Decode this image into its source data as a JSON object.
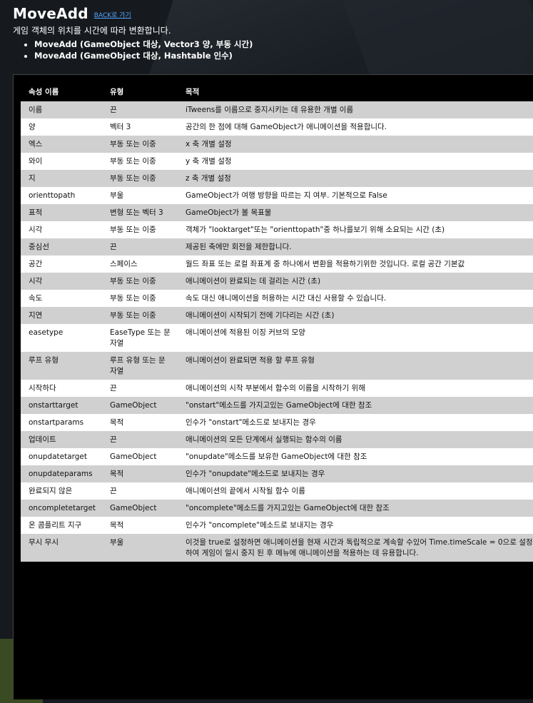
{
  "header": {
    "title": "MoveAdd",
    "back_link": "BACK로 가기",
    "description": "게임 객체의 위치를 시간에 따라 변환합니다.",
    "signatures": [
      "MoveAdd (GameObject 대상, Vector3 양, 부동 시간)",
      "MoveAdd (GameObject 대상, Hashtable 인수)"
    ]
  },
  "table": {
    "headers": [
      "속성 이름",
      "유형",
      "목적"
    ],
    "rows": [
      [
        "이름",
        "끈",
        "iTweens를 이름으로 중지시키는 데 유용한 개별 이름"
      ],
      [
        "양",
        "벡터 3",
        "공간의 한 점에 대해 GameObject가 애니메이션을 적용합니다."
      ],
      [
        "엑스",
        "부동 또는 이중",
        "x 축 개별 설정"
      ],
      [
        "와이",
        "부동 또는 이중",
        "y 축 개별 설정"
      ],
      [
        "지",
        "부동 또는 이중",
        "z 축 개별 설정"
      ],
      [
        "orienttopath",
        "부울",
        "GameObject가 여행 방향을 따르는 지 여부. 기본적으로 False"
      ],
      [
        "표적",
        "변형 또는 벡터 3",
        "GameObject가 볼 목표물"
      ],
      [
        "시각",
        "부동 또는 이중",
        "객체가 \"looktarget\"또는 \"orienttopath\"중 하나를보기 위해 소요되는 시간 (초)"
      ],
      [
        "중심선",
        "끈",
        "제공된 축에만 회전을 제한합니다."
      ],
      [
        "공간",
        "스페이스",
        "월드 좌표 또는 로컬 좌표계 중 하나에서 변환을 적용하기위한 것입니다. 로컬 공간 기본값"
      ],
      [
        "시각",
        "부동 또는 이중",
        "애니메이션이 완료되는 데 걸리는 시간 (초)"
      ],
      [
        "속도",
        "부동 또는 이중",
        "속도 대신 애니메이션을 허용하는 시간 대신 사용할 수 있습니다."
      ],
      [
        "지연",
        "부동 또는 이중",
        "애니메이션이 시작되기 전에 기다리는 시간 (초)"
      ],
      [
        "easetype",
        "EaseType 또는 문자열",
        "애니메이션에 적용된 이징 커브의 모양"
      ],
      [
        "루프 유형",
        "루프 유형 또는 문자열",
        "애니메이션이 완료되면 적용 할 루프 유형"
      ],
      [
        "시작하다",
        "끈",
        "애니메이션의 시작 부분에서 함수의 이름을 시작하기 위해"
      ],
      [
        "onstarttarget",
        "GameObject",
        "\"onstart\"메소드를 가지고있는 GameObject에 대한 참조"
      ],
      [
        "onstartparams",
        "목적",
        "인수가 \"onstart\"메소드로 보내지는 경우"
      ],
      [
        "업데이트",
        "끈",
        "애니메이션의 모든 단계에서 실행되는 함수의 이름"
      ],
      [
        "onupdatetarget",
        "GameObject",
        "\"onupdate\"메소드를 보유한 GameObject에 대한 참조"
      ],
      [
        "onupdateparams",
        "목적",
        "인수가 \"onupdate\"메소드로 보내지는 경우"
      ],
      [
        "완료되지 않은",
        "끈",
        "애니메이션의 끝에서 시작될 함수 이름"
      ],
      [
        "oncompletetarget",
        "GameObject",
        "\"oncomplete\"메소드를 가지고있는 GameObject에 대한 참조"
      ],
      [
        "온 콤플리트 지구",
        "목적",
        "인수가 \"oncomplete\"메소드로 보내지는 경우"
      ],
      [
        "무시 무시",
        "부울",
        "이것을 true로 설정하면 애니메이션을 현재 시간과 독립적으로 계속할 수있어 Time.timeScale = 0으로 설정하여 게임이 일시 중지 된 후 메뉴에 애니메이션을 적용하는 데 유용합니다."
      ]
    ]
  }
}
